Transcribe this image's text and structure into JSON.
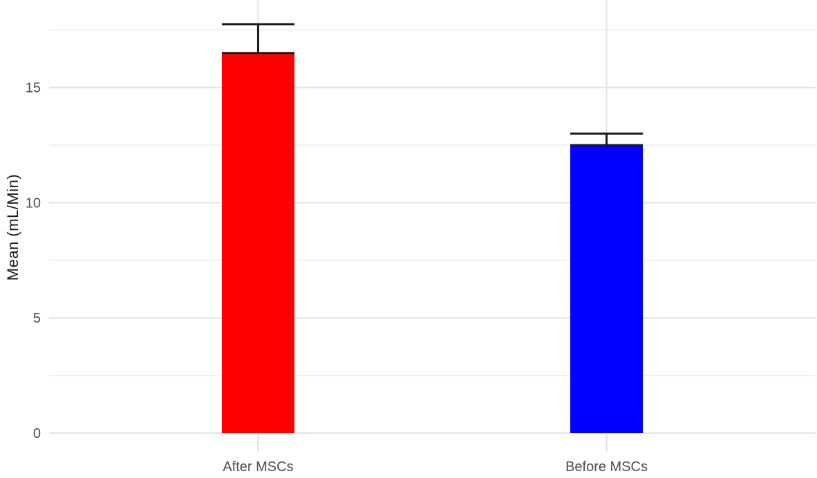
{
  "figure": {
    "background": "#ffffff"
  },
  "chart_data": {
    "type": "bar",
    "categories": [
      "After MSCs",
      "Before MSCs"
    ],
    "values": [
      16.5,
      12.5
    ],
    "errors_plus": [
      1.25,
      0.5
    ],
    "bar_colors": [
      "#ff0000",
      "#0000ff"
    ],
    "title": "",
    "xlabel": "",
    "ylabel": "Mean (mL/Min)",
    "yticks": [
      0,
      5,
      10,
      15
    ],
    "yticks_minor": [
      2.5,
      7.5,
      12.5,
      17.5
    ],
    "ylim": [
      0,
      18.8
    ],
    "grid": true,
    "legend": false,
    "error_bars": "capped whisker from bar top (mean) up to mean + error",
    "style": {
      "grid_major_color": "#e3e3e3",
      "grid_minor_color": "#f0f0f0",
      "x_tick_color": "#e0e0e0",
      "axis_text_color": "#4d4d4d",
      "axis_title_color": "#1a1a1a",
      "error_bar_color": "#1a1a1a"
    }
  }
}
